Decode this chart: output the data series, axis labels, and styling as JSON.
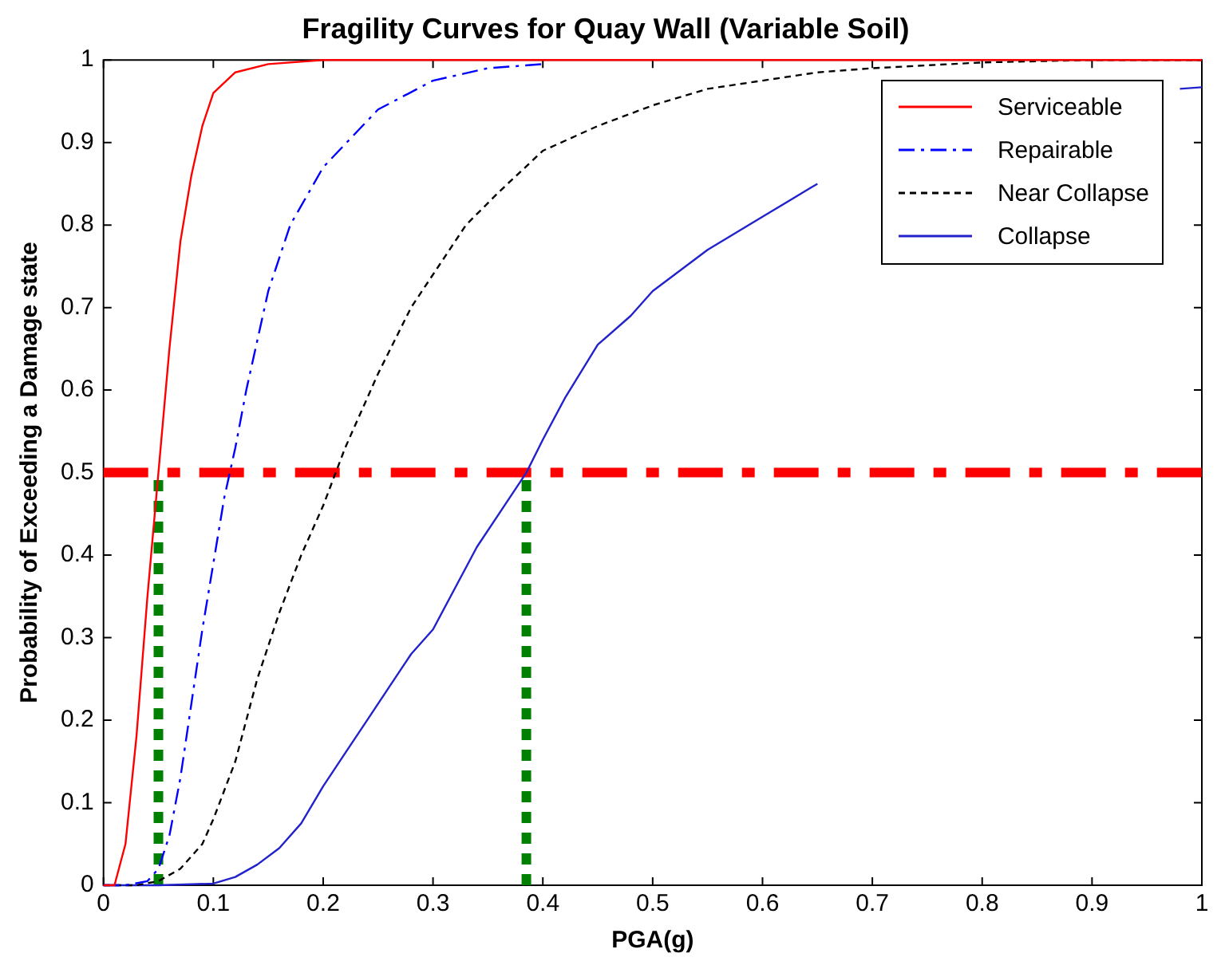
{
  "chart_data": {
    "type": "line",
    "title": "Fragility Curves for Quay Wall (Variable Soil)",
    "xlabel": "PGA(g)",
    "ylabel": "Probability of Exceeding a Damage state",
    "xlim": [
      0,
      1
    ],
    "ylim": [
      0,
      1
    ],
    "xticks": [
      0,
      0.1,
      0.2,
      0.3,
      0.4,
      0.5,
      0.6,
      0.7,
      0.8,
      0.9,
      1
    ],
    "yticks": [
      0,
      0.1,
      0.2,
      0.3,
      0.4,
      0.5,
      0.6,
      0.7,
      0.8,
      0.9,
      1
    ],
    "grid": false,
    "legend": "top right",
    "series": [
      {
        "name": "Serviceable",
        "color": "#ff0000",
        "line_style": "solid",
        "x": [
          0,
          0.01,
          0.02,
          0.03,
          0.04,
          0.05,
          0.06,
          0.07,
          0.08,
          0.09,
          0.1,
          0.12,
          0.15,
          0.2,
          0.3,
          0.5,
          1
        ],
        "values": [
          0,
          0,
          0.05,
          0.18,
          0.35,
          0.5,
          0.65,
          0.78,
          0.86,
          0.92,
          0.96,
          0.985,
          0.995,
          1,
          1,
          1,
          1
        ]
      },
      {
        "name": "Repairable",
        "color": "#0000ff",
        "line_style": "dashed",
        "x": [
          0,
          0.02,
          0.04,
          0.05,
          0.06,
          0.07,
          0.08,
          0.09,
          0.1,
          0.11,
          0.12,
          0.13,
          0.15,
          0.17,
          0.2,
          0.25,
          0.3,
          0.35,
          0.4
        ],
        "values": [
          0,
          0,
          0.005,
          0.02,
          0.06,
          0.13,
          0.22,
          0.31,
          0.39,
          0.47,
          0.53,
          0.6,
          0.72,
          0.8,
          0.87,
          0.94,
          0.975,
          0.99,
          0.995
        ]
      },
      {
        "name": "Near Collapse",
        "color": "#000000",
        "line_style": "dotted",
        "x": [
          0,
          0.03,
          0.05,
          0.07,
          0.09,
          0.1,
          0.12,
          0.14,
          0.16,
          0.18,
          0.2,
          0.22,
          0.25,
          0.28,
          0.3,
          0.33,
          0.36,
          0.4,
          0.45,
          0.5,
          0.55,
          0.6,
          0.65,
          0.7,
          0.8,
          0.9,
          1
        ],
        "values": [
          0,
          0,
          0.005,
          0.02,
          0.05,
          0.08,
          0.15,
          0.25,
          0.33,
          0.4,
          0.46,
          0.53,
          0.62,
          0.7,
          0.74,
          0.8,
          0.84,
          0.89,
          0.92,
          0.945,
          0.965,
          0.975,
          0.985,
          0.99,
          0.997,
          1,
          1
        ]
      },
      {
        "name": "Collapse",
        "color": "#2222cc",
        "line_style": "solid",
        "x": [
          0,
          0.05,
          0.1,
          0.12,
          0.14,
          0.16,
          0.18,
          0.2,
          0.22,
          0.24,
          0.26,
          0.28,
          0.3,
          0.32,
          0.34,
          0.36,
          0.385,
          0.4,
          0.42,
          0.45,
          0.48,
          0.5,
          0.55,
          0.6,
          0.65,
          0.7,
          0.75,
          0.8,
          0.85,
          0.9,
          0.95,
          0.98,
          1
        ],
        "values": [
          0,
          0,
          0.002,
          0.01,
          0.025,
          0.045,
          0.075,
          0.12,
          0.16,
          0.2,
          0.24,
          0.28,
          0.31,
          0.36,
          0.41,
          0.45,
          0.5,
          0.54,
          0.59,
          0.655,
          0.69,
          0.72,
          0.77,
          0.81,
          0.85,
          null,
          null,
          null,
          null,
          null,
          null,
          0.965,
          0.967
        ]
      }
    ],
    "ref_lines": [
      {
        "axis": "y",
        "value": 0.5,
        "color": "#ff0000",
        "line_style": "dashed"
      },
      {
        "axis": "x",
        "value": 0.05,
        "color": "#008000",
        "line_style": "dotted"
      },
      {
        "axis": "x",
        "value": 0.385,
        "color": "#008000",
        "line_style": "dotted"
      }
    ]
  }
}
